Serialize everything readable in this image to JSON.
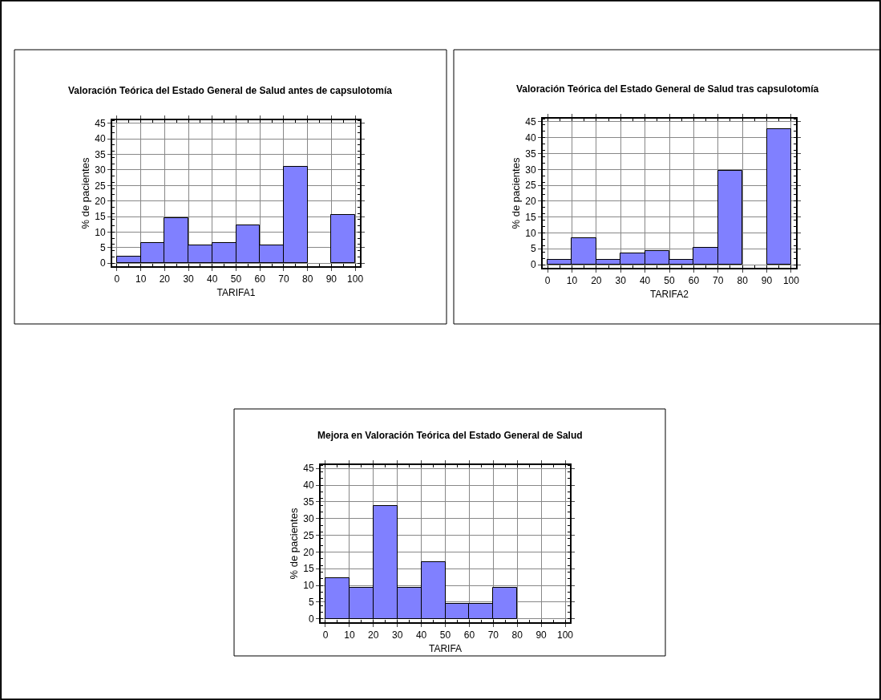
{
  "chart_data": [
    {
      "type": "histogram",
      "title": "Valoración Teórica del Estado General de Salud antes de capsulotomía",
      "xlabel": "TARIFA1",
      "ylabel": "% de pacientes",
      "bins": [
        0,
        10,
        20,
        30,
        40,
        50,
        60,
        70,
        80,
        90,
        100
      ],
      "values": [
        2.2,
        6.6,
        14.4,
        5.6,
        6.6,
        12.2,
        5.6,
        31.1,
        0,
        15.6
      ],
      "color": "#8080ff",
      "xlim": [
        -2,
        102
      ],
      "ylim": [
        -1,
        46
      ],
      "xticks": [
        0,
        10,
        20,
        30,
        40,
        50,
        60,
        70,
        80,
        90,
        100
      ],
      "yticks": [
        0,
        5,
        10,
        15,
        20,
        25,
        30,
        35,
        40,
        45
      ],
      "grid": true,
      "legend": false
    },
    {
      "type": "histogram",
      "title": "Valoración Teórica del Estado General de Salud tras capsulotomía",
      "xlabel": "TARIFA2",
      "ylabel": "% de pacientes",
      "bins": [
        0,
        10,
        20,
        30,
        40,
        50,
        60,
        70,
        80,
        90,
        100
      ],
      "values": [
        1.6,
        8.3,
        1.6,
        3.6,
        4.4,
        1.6,
        5.4,
        29.5,
        0,
        42.6
      ],
      "color": "#8080ff",
      "xlim": [
        -2,
        102
      ],
      "ylim": [
        -1,
        46
      ],
      "xticks": [
        0,
        10,
        20,
        30,
        40,
        50,
        60,
        70,
        80,
        90,
        100
      ],
      "yticks": [
        0,
        5,
        10,
        15,
        20,
        25,
        30,
        35,
        40,
        45
      ],
      "grid": true,
      "legend": false
    },
    {
      "type": "histogram",
      "title": "Mejora en Valoración Teórica del Estado General de Salud",
      "xlabel": "TARIFA",
      "ylabel": "% de pacientes",
      "bins": [
        0,
        10,
        20,
        30,
        40,
        50,
        60,
        70,
        80,
        90,
        100
      ],
      "values": [
        12.3,
        9.2,
        33.8,
        9.2,
        16.9,
        4.6,
        4.6,
        9.2,
        0,
        0
      ],
      "color": "#8080ff",
      "xlim": [
        -2,
        102
      ],
      "ylim": [
        -1,
        46
      ],
      "xticks": [
        0,
        10,
        20,
        30,
        40,
        50,
        60,
        70,
        80,
        90,
        100
      ],
      "yticks": [
        0,
        5,
        10,
        15,
        20,
        25,
        30,
        35,
        40,
        45
      ],
      "grid": true,
      "legend": false
    }
  ]
}
